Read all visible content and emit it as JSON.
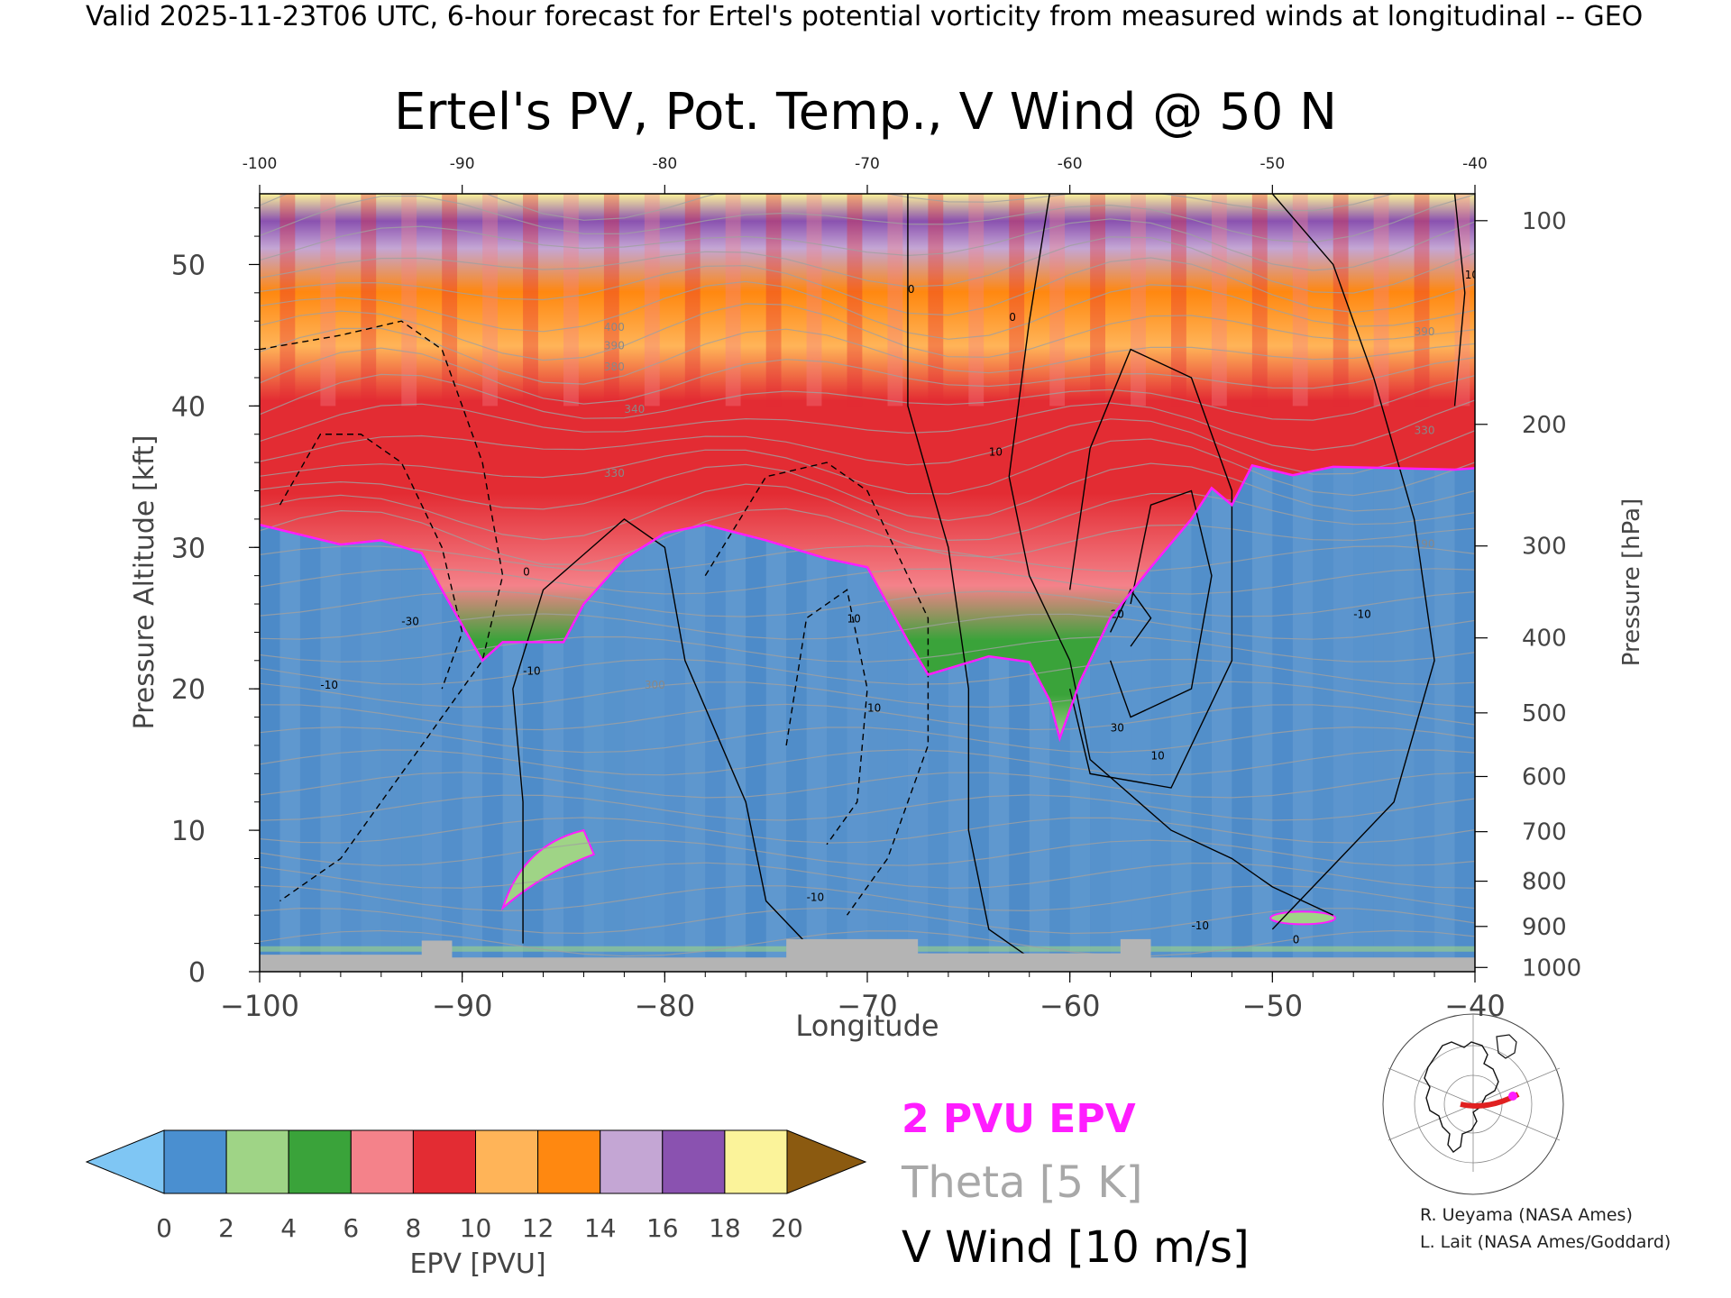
{
  "header": {
    "valid_line": "Valid 2025-11-23T06 UTC, 6-hour forecast for Ertel's potential vorticity from measured winds at longitudinal -- GEO"
  },
  "chart_data": {
    "type": "heatmap",
    "title": "Ertel's PV, Pot. Temp., V Wind @ 50 N",
    "xlabel": "Longitude",
    "ylabel": "Pressure Altitude [kft]",
    "y2label": "Pressure [hPa]",
    "xlim": [
      -100,
      -40
    ],
    "ylim": [
      0,
      55
    ],
    "x_ticks": [
      -100,
      -90,
      -80,
      -70,
      -60,
      -50,
      -40
    ],
    "x_tick_labels": [
      "−100",
      "−90",
      "−80",
      "−70",
      "−60",
      "−50",
      "−40"
    ],
    "x_top_tick_labels": [
      "-100",
      "-90",
      "-80",
      "-70",
      "-60",
      "-50",
      "-40"
    ],
    "y_ticks": [
      0,
      10,
      20,
      30,
      40,
      50
    ],
    "y_tick_labels": [
      "0",
      "10",
      "20",
      "30",
      "40",
      "50"
    ],
    "pressure_ticks": [
      {
        "label": "100",
        "kft": 53.1
      },
      {
        "label": "200",
        "kft": 38.7
      },
      {
        "label": "300",
        "kft": 30.1
      },
      {
        "label": "400",
        "kft": 23.6
      },
      {
        "label": "500",
        "kft": 18.3
      },
      {
        "label": "600",
        "kft": 13.8
      },
      {
        "label": "700",
        "kft": 9.9
      },
      {
        "label": "800",
        "kft": 6.4
      },
      {
        "label": "900",
        "kft": 3.2
      },
      {
        "label": "1000",
        "kft": 0.3
      }
    ],
    "colorbar": {
      "label": "EPV [PVU]",
      "tick_labels": [
        "0",
        "2",
        "4",
        "6",
        "8",
        "10",
        "12",
        "14",
        "16",
        "18",
        "20"
      ],
      "colors": [
        "#4a8fd0",
        "#9fd486",
        "#3aa33a",
        "#f4828a",
        "#e32c33",
        "#ffb458",
        "#ff8810",
        "#c4a6d4",
        "#8a52b0",
        "#fbf39a"
      ],
      "under_color": "#7fc6f4",
      "over_color": "#8b5a10"
    },
    "pv2_tropopause": {
      "name": "2 PVU EPV",
      "color": "#ff1dff",
      "lon": [
        -100,
        -96,
        -94,
        -92,
        -91,
        -89,
        -88,
        -85,
        -84,
        -82,
        -80,
        -78,
        -75,
        -72,
        -70,
        -68,
        -67,
        -64,
        -62,
        -61,
        -60.5,
        -59.5,
        -58,
        -56,
        -54,
        -53,
        -52,
        -51,
        -49,
        -47,
        -44,
        -41,
        -40
      ],
      "kft": [
        31.6,
        30.2,
        30.5,
        29.6,
        27,
        22,
        23.3,
        23.3,
        26,
        29.2,
        31,
        31.6,
        30.5,
        29.2,
        28.6,
        23.4,
        21,
        22.3,
        21.9,
        19.2,
        16.5,
        20.5,
        25,
        28.6,
        32,
        34.2,
        33,
        35.8,
        35.1,
        35.7,
        35.6,
        35.5,
        35.6
      ]
    },
    "legend": [
      {
        "label": "2 PVU EPV",
        "color": "#ff1dff"
      },
      {
        "label": "Theta [5 K]",
        "color": "#a8a8a8"
      },
      {
        "label": "V Wind [10 m/s]",
        "color": "#000000"
      }
    ],
    "theta_contour_labels": [
      "400",
      "390",
      "380",
      "340",
      "330",
      "300",
      "390",
      "330",
      "290"
    ],
    "wind_contour_labels": [
      "0",
      "-10",
      "-30",
      "10",
      "0",
      "10",
      "-10",
      "10",
      "0",
      "-10",
      "-10",
      "10",
      "30",
      "20",
      "10",
      "-10",
      "0"
    ],
    "credits": [
      "R. Ueyama (NASA Ames)",
      "L. Lait (NASA Ames/Goddard)"
    ],
    "theme": {
      "blue_dark": "#3f80c4",
      "blue_light": "#8ab8de",
      "terrain": "#b4b4b4"
    }
  }
}
